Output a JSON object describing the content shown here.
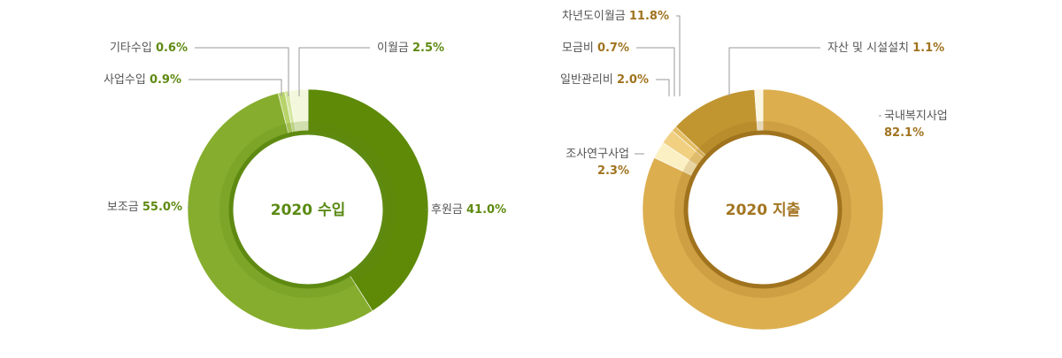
{
  "chart_data": [
    {
      "type": "pie",
      "title": "2020 수입",
      "slices": [
        {
          "name": "후원금",
          "value": 41.0,
          "label": "41.0%",
          "color": "#5e8a08"
        },
        {
          "name": "보조금",
          "value": 55.0,
          "label": "55.0%",
          "color": "#86ad2e"
        },
        {
          "name": "사업수입",
          "value": 0.9,
          "label": "0.9%",
          "color": "#b8d36a"
        },
        {
          "name": "기타수입",
          "value": 0.6,
          "label": "0.6%",
          "color": "#d4e6a0"
        },
        {
          "name": "이월금",
          "value": 2.5,
          "label": "2.5%",
          "color": "#f3f8dc"
        }
      ],
      "accent_color": "#5f8a12",
      "center_color": "#5a8a14"
    },
    {
      "type": "pie",
      "title": "2020 지출",
      "slices": [
        {
          "name": "국내복지사업",
          "value": 82.1,
          "label": "82.1%",
          "color": "#dcae4e"
        },
        {
          "name": "조사연구사업",
          "value": 2.3,
          "label": "2.3%",
          "color": "#fbf0c4"
        },
        {
          "name": "일반관리비",
          "value": 2.0,
          "label": "2.0%",
          "color": "#f1d082"
        },
        {
          "name": "모금비",
          "value": 0.7,
          "label": "0.7%",
          "color": "#e6bf66"
        },
        {
          "name": "차년도이월금",
          "value": 11.8,
          "label": "11.8%",
          "color": "#c19530"
        },
        {
          "name": "자산 및 시설설치",
          "value": 1.1,
          "label": "1.1%",
          "color": "#fcf6e2"
        }
      ],
      "accent_color": "#a0731e",
      "center_color": "#a37522"
    }
  ]
}
